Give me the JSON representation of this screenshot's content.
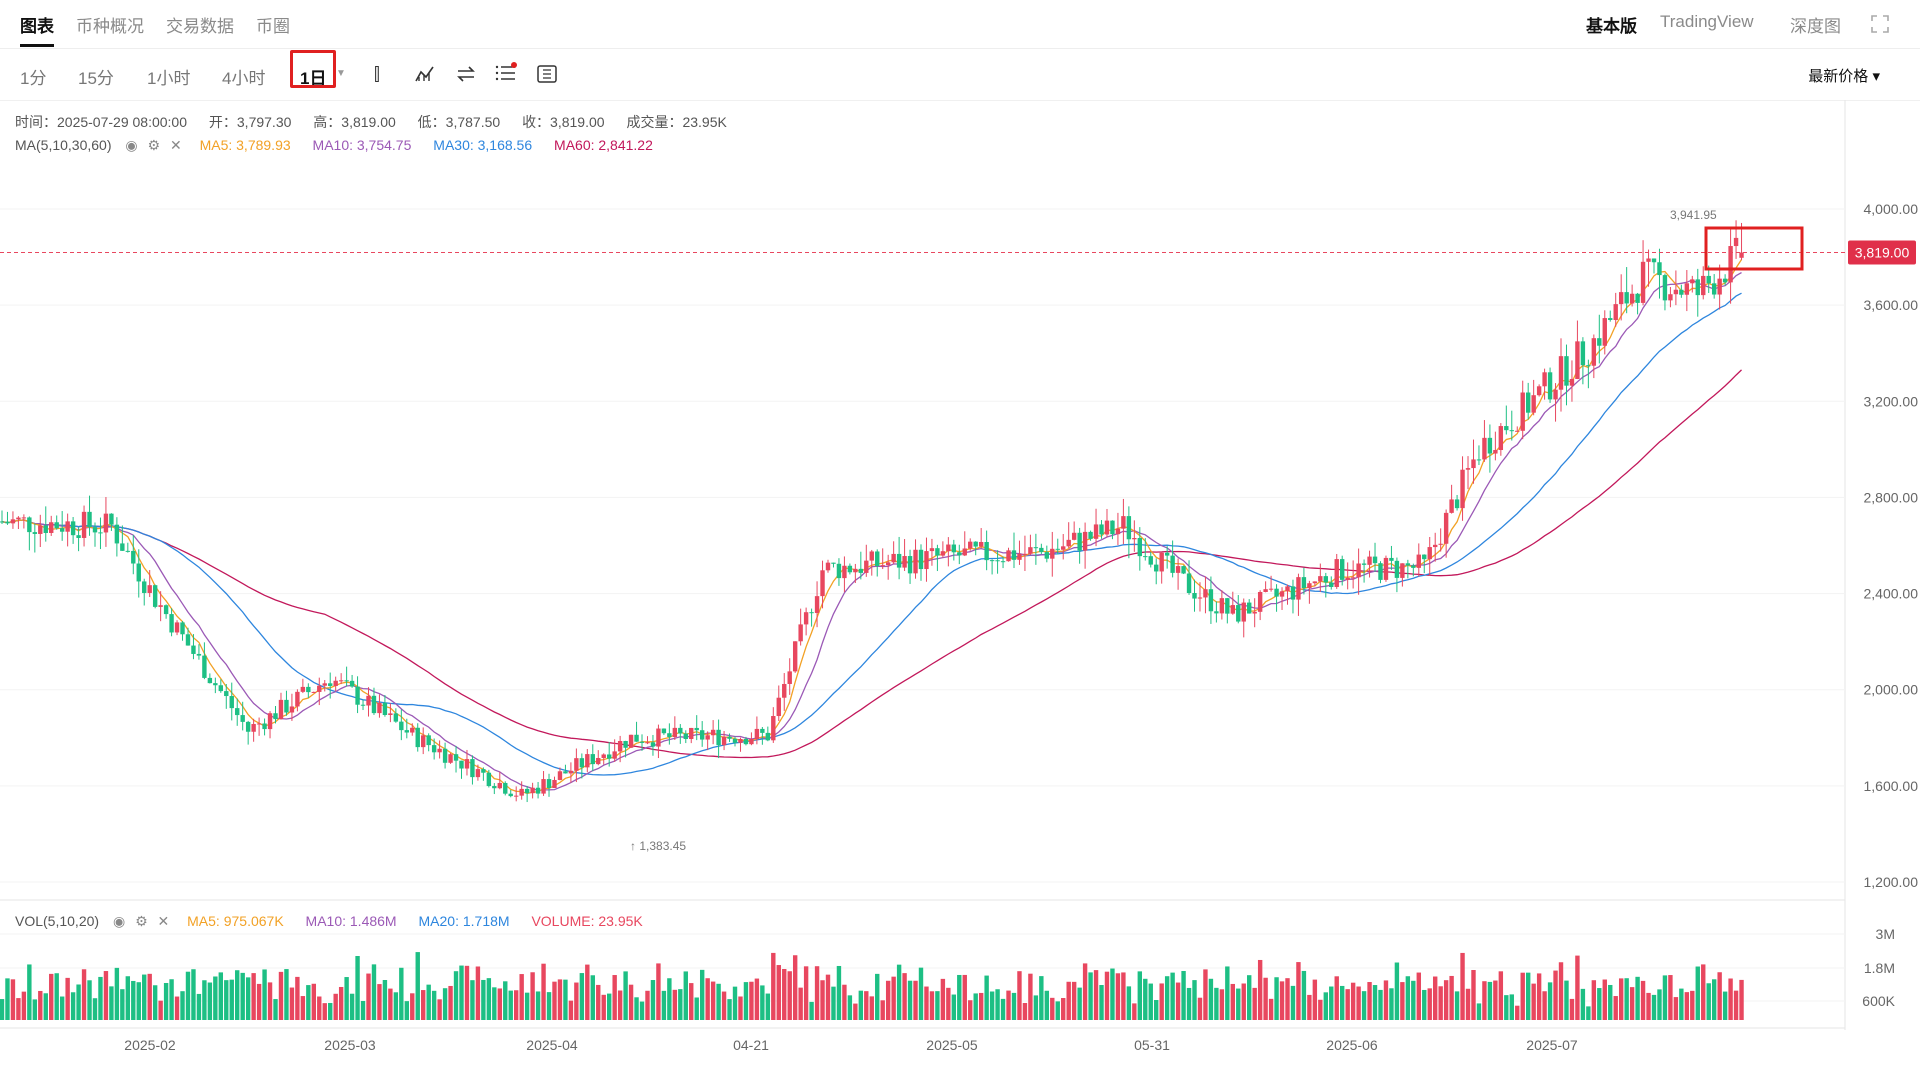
{
  "tabs": [
    {
      "label": "图表",
      "active": true
    },
    {
      "label": "币种概况"
    },
    {
      "label": "交易数据"
    },
    {
      "label": "币圈"
    }
  ],
  "right_tabs": [
    {
      "label": "基本版",
      "bold": true
    },
    {
      "label": "TradingView"
    },
    {
      "label": "深度图"
    }
  ],
  "intervals": [
    "1分",
    "15分",
    "1小时",
    "4小时",
    "1日"
  ],
  "selected_interval": "1日",
  "price_select": "最新价格",
  "ohlc": {
    "time": "时间：2025-07-29 08:00:00",
    "open": "开：3,797.30",
    "high": "高：3,819.00",
    "low": "低：3,787.50",
    "close": "收：3,819.00",
    "volume": "成交量：23.95K"
  },
  "ma_legend": {
    "label": "MA(5,10,30,60)",
    "ma5": "MA5: 3,789.93",
    "ma10": "MA10: 3,754.75",
    "ma30": "MA30: 3,168.56",
    "ma60": "MA60: 2,841.22"
  },
  "vol_legend": {
    "label": "VOL(5,10,20)",
    "ma5": "MA5: 975.067K",
    "ma10": "MA10: 1.486M",
    "ma20": "MA20: 1.718M",
    "volume": "VOLUME: 23.95K"
  },
  "colors": {
    "up": "#e8475f",
    "down": "#1dbf84",
    "ma5": "#f2a125",
    "ma10": "#9b59b6",
    "ma30": "#2e86de",
    "ma60": "#c2185b"
  },
  "chart_data": {
    "type": "candlestick",
    "y_ticks": [
      "4,000.00",
      "3,600.00",
      "3,200.00",
      "2,800.00",
      "2,400.00",
      "2,000.00",
      "1,600.00",
      "1,200.00"
    ],
    "ylim": [
      1200,
      4000
    ],
    "vol_ticks": [
      "3M",
      "1.8M",
      "600K"
    ],
    "x_labels": [
      "2025-02",
      "2025-03",
      "2025-04",
      "04-21",
      "2025-05",
      "05-31",
      "2025-06",
      "2025-07"
    ],
    "last_price": "3,819.00",
    "high_label": "3,941.95",
    "low_label": "1,383.45"
  }
}
